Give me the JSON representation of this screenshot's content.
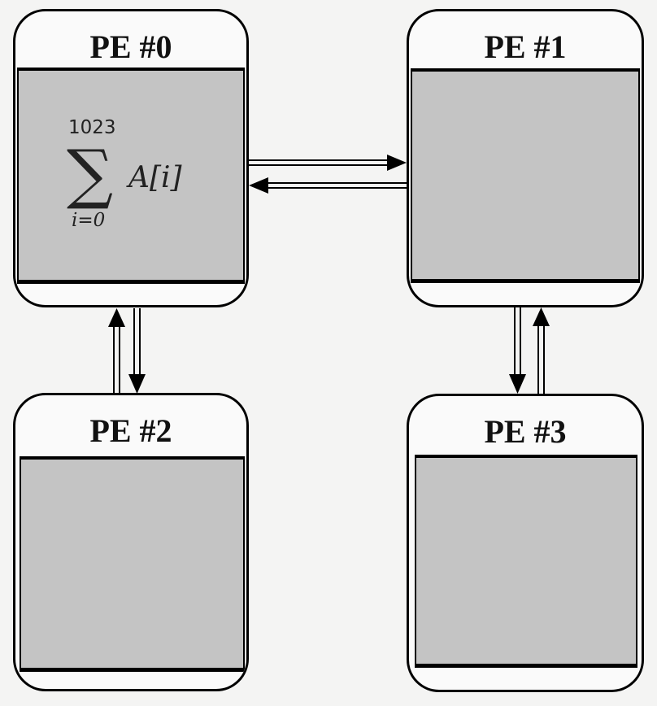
{
  "diagram": {
    "nodes": [
      {
        "id": "pe0",
        "label": "PE #0"
      },
      {
        "id": "pe1",
        "label": "PE #1"
      },
      {
        "id": "pe2",
        "label": "PE #2"
      },
      {
        "id": "pe3",
        "label": "PE #3"
      }
    ],
    "formula": {
      "upper": "1023",
      "operator": "∑",
      "term": "A[i]",
      "lower": "i=0"
    },
    "edges": [
      {
        "from": "pe0",
        "to": "pe1"
      },
      {
        "from": "pe1",
        "to": "pe0"
      },
      {
        "from": "pe0",
        "to": "pe2"
      },
      {
        "from": "pe2",
        "to": "pe0"
      },
      {
        "from": "pe1",
        "to": "pe3"
      },
      {
        "from": "pe3",
        "to": "pe1"
      }
    ],
    "colors": {
      "core_fill": "#c4c4c4",
      "box_fill": "#fafafa",
      "stroke": "#000000",
      "background": "#f4f4f3"
    }
  }
}
